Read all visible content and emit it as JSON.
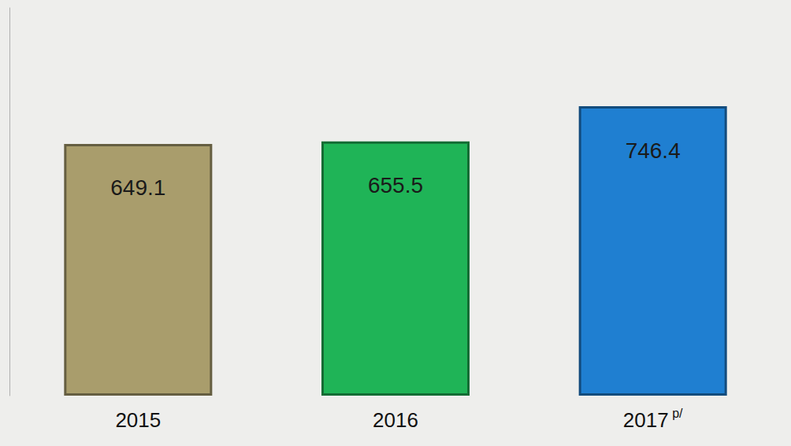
{
  "chart_data": {
    "type": "bar",
    "categories": [
      "2015",
      "2016",
      "2017 p/"
    ],
    "values": [
      649.1,
      655.5,
      746.4
    ],
    "colors": [
      "#a99d6c",
      "#1fb457",
      "#1f7fd1"
    ],
    "ylim": [
      0,
      1000
    ],
    "yticks": [],
    "tick_labels": "x",
    "data_labels": true,
    "grid": false
  }
}
